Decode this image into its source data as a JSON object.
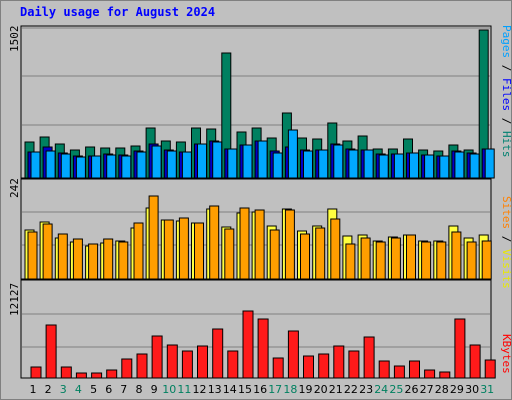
{
  "chart_data": {
    "type": "bar",
    "title": "Daily usage for August 2024",
    "days": [
      "1",
      "2",
      "3",
      "4",
      "5",
      "6",
      "7",
      "8",
      "9",
      "10",
      "11",
      "12",
      "13",
      "14",
      "15",
      "16",
      "17",
      "18",
      "19",
      "20",
      "21",
      "22",
      "23",
      "24",
      "25",
      "26",
      "27",
      "28",
      "29",
      "30",
      "31"
    ],
    "weekend_days": [
      "3",
      "4",
      "10",
      "11",
      "17",
      "18",
      "24",
      "25",
      "31"
    ],
    "panels": [
      {
        "id": "hits-files-pages",
        "max_label": "1502",
        "ymax": 1502,
        "right_labels": [
          {
            "text": "Pages",
            "color": "#00a0ff"
          },
          {
            "text": " / ",
            "color": "#000000"
          },
          {
            "text": "Files",
            "color": "#0000ff"
          },
          {
            "text": " / ",
            "color": "#000000"
          },
          {
            "text": "Hits",
            "color": "#008070"
          }
        ],
        "series": [
          {
            "name": "Hits",
            "color": "#008060",
            "values": [
              370,
              420,
              350,
              290,
              320,
              310,
              310,
              330,
              510,
              380,
              370,
              510,
              500,
              1290,
              470,
              510,
              410,
              670,
              410,
              400,
              570,
              380,
              430,
              300,
              300,
              400,
              290,
              280,
              340,
              290,
              1520
            ]
          },
          {
            "name": "Files",
            "color": "#0000c8",
            "values": [
              270,
              320,
              260,
              230,
              230,
              250,
              240,
              280,
              350,
              290,
              270,
              350,
              380,
              300,
              340,
              380,
              280,
              320,
              290,
              290,
              350,
              300,
              290,
              250,
              250,
              260,
              240,
              230,
              280,
              260,
              300
            ]
          },
          {
            "name": "Pages",
            "color": "#00a8ff",
            "values": [
              270,
              280,
              250,
              220,
              230,
              240,
              230,
              270,
              330,
              280,
              270,
              350,
              370,
              300,
              340,
              380,
              260,
              490,
              280,
              290,
              340,
              290,
              290,
              240,
              250,
              260,
              240,
              230,
              270,
              250,
              300
            ]
          }
        ]
      },
      {
        "id": "visits-sites",
        "max_label": "242",
        "ymax": 242,
        "right_labels": [
          {
            "text": "Sites",
            "color": "#ff8000"
          },
          {
            "text": " / ",
            "color": "#000000"
          },
          {
            "text": "Visits",
            "color": "#e8e800"
          }
        ],
        "series": [
          {
            "name": "Visits",
            "color": "#ffff40",
            "values": [
              126,
              146,
              105,
              95,
              84,
              92,
              98,
              132,
              182,
              153,
              150,
              143,
              181,
              134,
              170,
              173,
              136,
              181,
              123,
              136,
              179,
              110,
              114,
              98,
              107,
              114,
              98,
              98,
              136,
              105,
              114
            ]
          },
          {
            "name": "Sites",
            "color": "#ff9e00",
            "values": [
              121,
              141,
              115,
              102,
              89,
              104,
              95,
              143,
              213,
              153,
              156,
              145,
              187,
              129,
              183,
              177,
              125,
              177,
              116,
              131,
              154,
              91,
              105,
              94,
              106,
              112,
              94,
              94,
              122,
              95,
              97
            ]
          }
        ]
      },
      {
        "id": "kbytes",
        "max_label": "12127",
        "ymax": 12127,
        "right_labels": [
          {
            "text": "KBytes",
            "color": "#ff0000"
          }
        ],
        "series": [
          {
            "name": "KBytes",
            "color": "#ff1a1a",
            "values": [
              1500,
              7000,
              1400,
              600,
              700,
              1100,
              2500,
              3100,
              5600,
              4400,
              3500,
              4200,
              6400,
              3600,
              8800,
              7800,
              2700,
              6200,
              2900,
              3200,
              4200,
              3600,
              5400,
              2300,
              1600,
              2200,
              1100,
              800,
              7800,
              4400,
              2400
            ]
          }
        ]
      }
    ]
  }
}
